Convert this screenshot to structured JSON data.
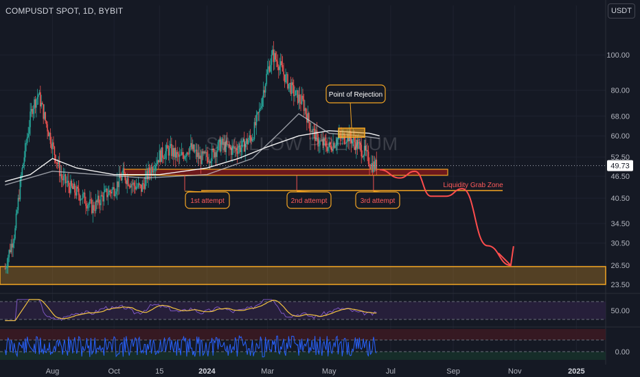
{
  "symbol": {
    "title": "COMPUSDT SPOT, 1D, BYBIT",
    "currency": "USDT",
    "watermark": "SWALLOW PREMIUM"
  },
  "colors": {
    "background": "#151924",
    "up": "#26a69a",
    "down": "#ef5350",
    "annotation": "#f5a623",
    "zone_red": "#8b1a1a",
    "arrow": "#ff4d4d",
    "rsi_band": "#2b2140",
    "oscillator": "#2962ff"
  },
  "chart_data": [
    {
      "type": "line",
      "subtype": "candlestick",
      "title": "",
      "xlabel": "",
      "ylabel": "",
      "y_scale": "log",
      "ylim": [
        22.5,
        120
      ],
      "x_range": [
        "2023-06-10",
        "2025-01-30"
      ],
      "x_tick_labels": [
        {
          "date": "2023-08-01",
          "label": "Aug"
        },
        {
          "date": "2023-10-01",
          "label": "Oct"
        },
        {
          "date": "2023-11-15",
          "label": "15"
        },
        {
          "date": "2024-01-01",
          "label": "2024",
          "bold": true
        },
        {
          "date": "2024-03-01",
          "label": "Mar"
        },
        {
          "date": "2024-05-01",
          "label": "May"
        },
        {
          "date": "2024-07-01",
          "label": "Jul"
        },
        {
          "date": "2024-09-01",
          "label": "Sep"
        },
        {
          "date": "2024-11-01",
          "label": "Nov"
        },
        {
          "date": "2025-01-01",
          "label": "2025",
          "bold": true
        }
      ],
      "y_ticks": [
        "100.00",
        "80.00",
        "68.00",
        "60.00",
        "52.50",
        "46.50",
        "40.50",
        "34.50",
        "30.50",
        "26.50",
        "23.50"
      ],
      "last_price": {
        "value": 49.73,
        "label": "49.73"
      },
      "price_path": [
        [
          "2023-06-15",
          26
        ],
        [
          "2023-06-25",
          33
        ],
        [
          "2023-07-05",
          55
        ],
        [
          "2023-07-12",
          72
        ],
        [
          "2023-07-18",
          78
        ],
        [
          "2023-07-25",
          66
        ],
        [
          "2023-08-02",
          55
        ],
        [
          "2023-08-10",
          46
        ],
        [
          "2023-08-20",
          43
        ],
        [
          "2023-08-30",
          41
        ],
        [
          "2023-09-10",
          38
        ],
        [
          "2023-09-20",
          41
        ],
        [
          "2023-10-01",
          43
        ],
        [
          "2023-10-10",
          47
        ],
        [
          "2023-10-20",
          44
        ],
        [
          "2023-10-28",
          43
        ],
        [
          "2023-11-05",
          48
        ],
        [
          "2023-11-15",
          53
        ],
        [
          "2023-11-25",
          55
        ],
        [
          "2023-12-05",
          52
        ],
        [
          "2023-12-15",
          56
        ],
        [
          "2023-12-25",
          52
        ],
        [
          "2024-01-05",
          53
        ],
        [
          "2024-01-15",
          57
        ],
        [
          "2024-01-25",
          55
        ],
        [
          "2024-02-05",
          56
        ],
        [
          "2024-02-15",
          60
        ],
        [
          "2024-02-22",
          70
        ],
        [
          "2024-03-01",
          90
        ],
        [
          "2024-03-06",
          100
        ],
        [
          "2024-03-12",
          95
        ],
        [
          "2024-03-20",
          85
        ],
        [
          "2024-03-28",
          78
        ],
        [
          "2024-04-05",
          74
        ],
        [
          "2024-04-12",
          64
        ],
        [
          "2024-04-20",
          58
        ],
        [
          "2024-05-01",
          56
        ],
        [
          "2024-05-10",
          59
        ],
        [
          "2024-05-20",
          60
        ],
        [
          "2024-05-28",
          57
        ],
        [
          "2024-06-05",
          54
        ],
        [
          "2024-06-12",
          50
        ],
        [
          "2024-06-17",
          49.73
        ]
      ],
      "moving_averages": [
        {
          "color": "#ffffff",
          "points": [
            [
              "2023-06-15",
              45
            ],
            [
              "2023-07-10",
              47
            ],
            [
              "2023-08-01",
              52
            ],
            [
              "2023-08-25",
              49
            ],
            [
              "2023-10-01",
              47
            ],
            [
              "2023-11-15",
              47
            ],
            [
              "2024-01-01",
              49
            ],
            [
              "2024-02-01",
              52
            ],
            [
              "2024-03-01",
              56
            ],
            [
              "2024-04-01",
              60
            ],
            [
              "2024-05-01",
              62
            ],
            [
              "2024-06-10",
              61
            ],
            [
              "2024-06-20",
              60
            ]
          ]
        },
        {
          "color": "#d1d4dc",
          "points": [
            [
              "2023-06-15",
              44
            ],
            [
              "2023-08-01",
              48
            ],
            [
              "2023-09-15",
              47
            ],
            [
              "2023-11-01",
              46
            ],
            [
              "2024-01-01",
              47
            ],
            [
              "2024-02-15",
              52
            ],
            [
              "2024-03-15",
              62
            ],
            [
              "2024-04-01",
              69
            ],
            [
              "2024-05-01",
              61
            ],
            [
              "2024-06-01",
              60
            ],
            [
              "2024-06-20",
              59
            ]
          ]
        }
      ],
      "annotations": {
        "point_of_rejection": {
          "label": "Point of Rejection",
          "y_range": [
            59.5,
            63
          ]
        },
        "support_zone_price": [
          46.8,
          48.6
        ],
        "liquidity_grab_zone": {
          "label": "Liquidity Grab Zone",
          "price": 42.5
        },
        "attempts": [
          {
            "label": "1st attempt",
            "date": "2023-12-10"
          },
          {
            "label": "2nd attempt",
            "date": "2024-03-30"
          },
          {
            "label": "3rd attempt",
            "date": "2024-06-14"
          }
        ],
        "target_zone_price": [
          23.5,
          26.3
        ],
        "projected_path": [
          [
            "2024-06-20",
            48.5
          ],
          [
            "2024-07-10",
            46
          ],
          [
            "2024-07-25",
            48
          ],
          [
            "2024-08-10",
            41
          ],
          [
            "2024-08-25",
            41
          ],
          [
            "2024-09-10",
            43
          ],
          [
            "2024-10-05",
            30
          ],
          [
            "2024-10-28",
            26.5
          ]
        ]
      }
    },
    {
      "type": "line",
      "subtype": "rsi",
      "title": "",
      "y_ticks": [
        "50.00"
      ],
      "ylim": [
        0,
        100
      ]
    },
    {
      "type": "line",
      "subtype": "oscillator",
      "title": "",
      "y_ticks": [
        "0.00"
      ]
    }
  ]
}
